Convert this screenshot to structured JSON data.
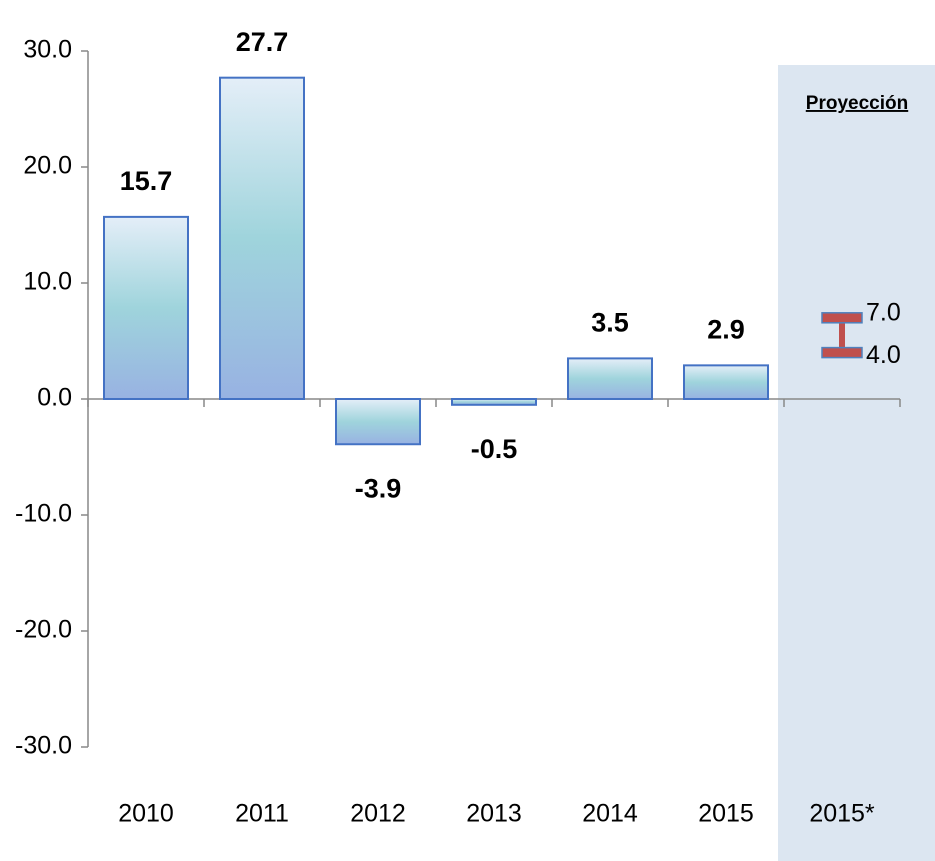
{
  "chart_data": {
    "type": "bar",
    "categories": [
      "2010",
      "2011",
      "2012",
      "2013",
      "2014",
      "2015",
      "2015*"
    ],
    "values": [
      15.7,
      27.7,
      -3.9,
      -0.5,
      3.5,
      2.9,
      null
    ],
    "color": "#4472c4",
    "ylim": [
      -30,
      30
    ],
    "yticks": [
      {
        "value": -30,
        "label": "-30.0"
      },
      {
        "value": -20,
        "label": "-20.0"
      },
      {
        "value": -10,
        "label": "-10.0"
      },
      {
        "value": 0,
        "label": "0.0"
      },
      {
        "value": 10,
        "label": "10.0"
      },
      {
        "value": 20,
        "label": "20.0"
      },
      {
        "value": 30,
        "label": "30.0"
      }
    ],
    "grid": false,
    "annotation": "Proyección",
    "projection": {
      "values": [
        4.0,
        7.0
      ],
      "value_labels": [
        "4.0",
        "7.0"
      ],
      "color": "#c0504d"
    }
  }
}
